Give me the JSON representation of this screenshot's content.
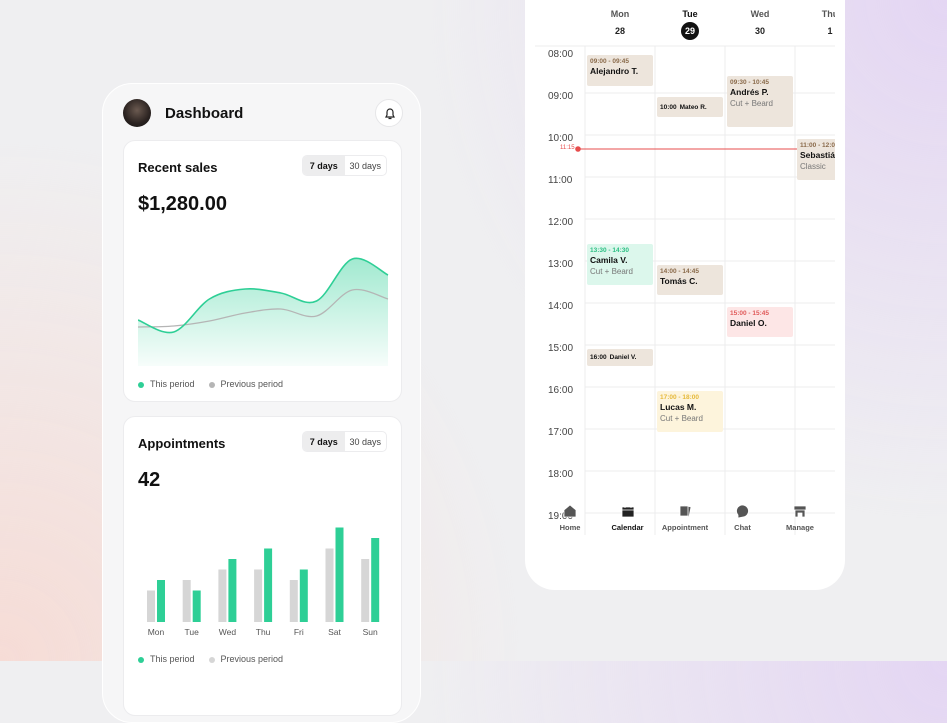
{
  "header": {
    "title": "Dashboard"
  },
  "sales_card": {
    "title": "Recent sales",
    "tabs": [
      "7 days",
      "30 days"
    ],
    "total": "$1,280.00",
    "chart_data": {
      "type": "area",
      "series": [
        {
          "name": "This period",
          "color": "#2ecf96",
          "values": [
            46,
            34,
            67,
            77,
            73,
            65,
            107,
            91
          ]
        },
        {
          "name": "Previous period",
          "color": "#b5b5b5",
          "values": [
            39,
            40,
            45,
            53,
            57,
            50,
            76,
            67
          ]
        }
      ]
    }
  },
  "appointments_card": {
    "title": "Appointments",
    "tabs": [
      "7 days",
      "30 days"
    ],
    "total": "42",
    "chart_data": {
      "type": "bar",
      "categories": [
        "Mon",
        "Tue",
        "Wed",
        "Thu",
        "Fri",
        "Sat",
        "Sun"
      ],
      "series": [
        {
          "name": "This period",
          "color": "#2ecf96",
          "values": [
            4,
            3,
            6,
            7,
            5,
            9,
            8
          ]
        },
        {
          "name": "Previous period",
          "color": "#d6d6d6",
          "values": [
            3,
            4,
            5,
            5,
            4,
            7,
            6
          ]
        }
      ]
    }
  },
  "calendar": {
    "days": [
      {
        "name": "Mon",
        "date": "28"
      },
      {
        "name": "Tue",
        "date": "29"
      },
      {
        "name": "Wed",
        "date": "30"
      },
      {
        "name": "Thu",
        "date": "1"
      }
    ],
    "hours": [
      "08:00",
      "09:00",
      "10:00",
      "11:00",
      "12:00",
      "13:00",
      "14:00",
      "15:00",
      "16:00",
      "17:00",
      "18:00",
      "19:00"
    ],
    "now": "11:15",
    "events": [
      {
        "time": "09:00 - 09:45",
        "name": "Alejandro T."
      },
      {
        "time": "10:00",
        "name": "Mateo R."
      },
      {
        "time": "09:30 - 10:45",
        "name": "Andrés P.",
        "service": "Cut + Beard"
      },
      {
        "time": "11:00 - 12:00",
        "name": "Sebastián",
        "service": "Classic"
      },
      {
        "time": "13:30 - 14:30",
        "name": "Camila V.",
        "service": "Cut + Beard"
      },
      {
        "time": "14:00 - 14:45",
        "name": "Tomás C."
      },
      {
        "time": "15:00 - 15:45",
        "name": "Daniel O."
      },
      {
        "time": "16:00",
        "name": "Daniel V."
      },
      {
        "time": "17:00 - 18:00",
        "name": "Lucas M.",
        "service": "Cut + Beard"
      }
    ]
  },
  "nav": [
    "Home",
    "Calendar",
    "Appointment",
    "Chat",
    "Manage"
  ]
}
